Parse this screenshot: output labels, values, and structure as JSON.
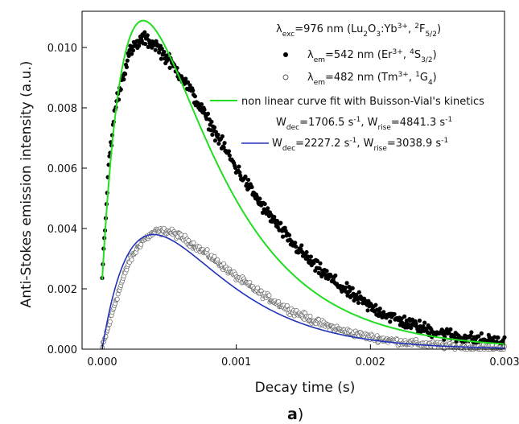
{
  "chart_data": {
    "type": "scatter",
    "title": "",
    "xlabel": "Decay time (s)",
    "ylabel": "Anti-Stokes emission intensity (a.u.)",
    "panel_label": "a",
    "panel_paren": ")",
    "xlim": [
      -0.00015,
      0.003
    ],
    "ylim": [
      0.0,
      0.0112
    ],
    "x_ticks": [
      0.0,
      0.001,
      0.002,
      0.003
    ],
    "x_tick_labels": [
      "0.000",
      "0.001",
      "0.002",
      "0.003"
    ],
    "y_ticks": [
      0.0,
      0.002,
      0.004,
      0.006,
      0.008,
      0.01
    ],
    "y_tick_labels": [
      "0.000",
      "0.002",
      "0.004",
      "0.006",
      "0.008",
      "0.010"
    ],
    "grid": false,
    "legend_position": "top-right",
    "legend": {
      "header": {
        "lam": "λ",
        "sub1": "exc",
        "t1": "=976 nm (Lu",
        "sub2": "2",
        "t2": "O",
        "sub3": "3",
        "t3": ":Yb",
        "sup1": "3+",
        "t4": ", ",
        "sup2": "2",
        "t5": "F",
        "sub4": "5/2",
        "t6": ")"
      },
      "er": {
        "lam": "λ",
        "sub1": "em",
        "t1": "=542 nm (Er",
        "sup1": "3+",
        "t2": ", ",
        "sup2": "4",
        "t3": "S",
        "sub2": "3/2",
        "t4": ")"
      },
      "tm": {
        "lam": "λ",
        "sub1": "em",
        "t1": "=482 nm (Tm",
        "sup1": "3+",
        "t2": ", ",
        "sup2": "1",
        "t3": "G",
        "sub2": "4",
        "t4": ")"
      },
      "fit_label": "non linear curve fit with Buisson-Vial's kinetics",
      "green_params": {
        "w1": "W",
        "sub1": "dec",
        "t1": "=1706.5 s",
        "sup1": "-1",
        "t2": ", W",
        "sub2": "rise",
        "t3": "=4841.3 s",
        "sup2": "-1"
      },
      "blue_params": {
        "w1": "W",
        "sub1": "dec",
        "t1": "=2227.2 s",
        "sup1": "-1",
        "t2": ", W",
        "sub2": "rise",
        "t3": "=3038.9 s",
        "sup2": "-1"
      }
    },
    "series": [
      {
        "name": "λem=542 nm (Er3+, 4S3/2)",
        "type": "scatter",
        "marker": "filled-circle",
        "color": "#000000",
        "x_start": 0.0,
        "x_end": 0.003,
        "n_points": 560,
        "y_at": [
          [
            0.0,
            0.0023
          ],
          [
            5e-05,
            0.0062
          ],
          [
            0.0001,
            0.0081
          ],
          [
            0.0002,
            0.0098
          ],
          [
            0.0003,
            0.0103
          ],
          [
            0.0004,
            0.0101
          ],
          [
            0.0006,
            0.009
          ],
          [
            0.0008,
            0.0075
          ],
          [
            0.001,
            0.006
          ],
          [
            0.0012,
            0.0047
          ],
          [
            0.0014,
            0.0036
          ],
          [
            0.0016,
            0.0027
          ],
          [
            0.0018,
            0.002
          ],
          [
            0.002,
            0.0014
          ],
          [
            0.0022,
            0.00098
          ],
          [
            0.0024,
            0.00068
          ],
          [
            0.0026,
            0.00046
          ],
          [
            0.0028,
            0.00031
          ],
          [
            0.003,
            0.00021
          ]
        ]
      },
      {
        "name": "λem=482 nm (Tm3+, 1G4)",
        "type": "scatter",
        "marker": "open-circle",
        "color": "#555555",
        "x_start": 0.0,
        "x_end": 0.003,
        "n_points": 560,
        "y_at": [
          [
            0.0,
            5e-05
          ],
          [
            5e-05,
            0.0008
          ],
          [
            0.0001,
            0.0016
          ],
          [
            0.0002,
            0.0029
          ],
          [
            0.0003,
            0.0036
          ],
          [
            0.0004,
            0.0039
          ],
          [
            0.0005,
            0.0039
          ],
          [
            0.0006,
            0.0037
          ],
          [
            0.0008,
            0.0031
          ],
          [
            0.001,
            0.0024
          ],
          [
            0.0012,
            0.0018
          ],
          [
            0.0014,
            0.0013
          ],
          [
            0.0016,
            0.0009
          ],
          [
            0.0018,
            0.0006
          ],
          [
            0.002,
            0.0004
          ],
          [
            0.0022,
            0.00026
          ],
          [
            0.0024,
            0.00016
          ],
          [
            0.0026,
            0.0001
          ],
          [
            0.0028,
            6e-05
          ],
          [
            0.003,
            4e-05
          ]
        ]
      },
      {
        "name": "non linear curve fit with Buisson-Vial's kinetics",
        "type": "line",
        "color": "#22dd22",
        "model": "biexponential",
        "W_dec": 1706.5,
        "W_rise": 4841.3,
        "peak": 0.0104,
        "baseline": 0.0023
      },
      {
        "name": "Wdec=2227.2 s-1, Wrise=3038.9 s-1",
        "type": "line",
        "color": "#2233bb",
        "model": "biexponential",
        "W_dec": 2227.2,
        "W_rise": 3038.9,
        "peak": 0.0038,
        "baseline": 0.0
      }
    ]
  }
}
